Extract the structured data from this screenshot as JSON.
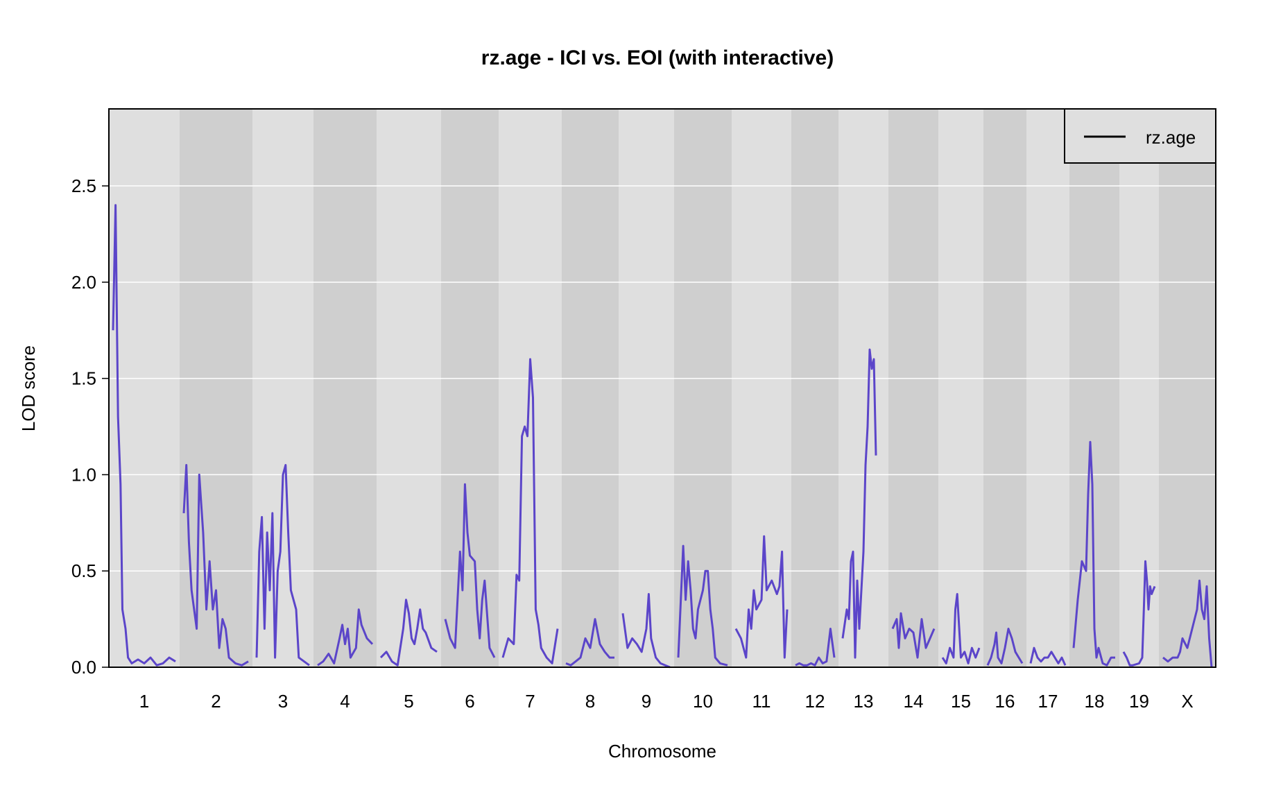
{
  "chart_data": {
    "type": "line",
    "title": "rz.age - ICI vs. EOI (with interactive)",
    "xlabel": "Chromosome",
    "ylabel": "LOD score",
    "ylim": [
      0,
      2.9
    ],
    "yticks": [
      "0.0",
      "0.5",
      "1.0",
      "1.5",
      "2.0",
      "2.5"
    ],
    "ytick_values": [
      0,
      0.5,
      1.0,
      1.5,
      2.0,
      2.5
    ],
    "grid": true,
    "legend": {
      "position": "top-right",
      "entries": [
        "rz.age"
      ]
    },
    "colors": {
      "line": "#5b45c9",
      "band_light": "#dfdfdf",
      "band_dark": "#cfcfcf",
      "grid": "#ffffff",
      "legend_line": "#000000"
    },
    "chromosomes": [
      {
        "label": "1",
        "points": [
          [
            0,
            1.75
          ],
          [
            0.04,
            2.4
          ],
          [
            0.08,
            1.3
          ],
          [
            0.12,
            0.95
          ],
          [
            0.15,
            0.3
          ],
          [
            0.2,
            0.2
          ],
          [
            0.24,
            0.05
          ],
          [
            0.3,
            0.02
          ],
          [
            0.4,
            0.04
          ],
          [
            0.5,
            0.02
          ],
          [
            0.6,
            0.05
          ],
          [
            0.7,
            0.01
          ],
          [
            0.8,
            0.02
          ],
          [
            0.9,
            0.05
          ],
          [
            1,
            0.03
          ]
        ]
      },
      {
        "label": "2",
        "points": [
          [
            0,
            0.8
          ],
          [
            0.04,
            1.05
          ],
          [
            0.08,
            0.65
          ],
          [
            0.12,
            0.4
          ],
          [
            0.2,
            0.2
          ],
          [
            0.24,
            1.0
          ],
          [
            0.3,
            0.7
          ],
          [
            0.35,
            0.3
          ],
          [
            0.4,
            0.55
          ],
          [
            0.45,
            0.3
          ],
          [
            0.5,
            0.4
          ],
          [
            0.55,
            0.1
          ],
          [
            0.6,
            0.25
          ],
          [
            0.65,
            0.2
          ],
          [
            0.7,
            0.05
          ],
          [
            0.8,
            0.02
          ],
          [
            0.9,
            0.01
          ],
          [
            1,
            0.03
          ]
        ]
      },
      {
        "label": "3",
        "points": [
          [
            0,
            0.05
          ],
          [
            0.05,
            0.6
          ],
          [
            0.1,
            0.78
          ],
          [
            0.15,
            0.2
          ],
          [
            0.2,
            0.7
          ],
          [
            0.25,
            0.4
          ],
          [
            0.3,
            0.8
          ],
          [
            0.35,
            0.05
          ],
          [
            0.4,
            0.5
          ],
          [
            0.45,
            0.6
          ],
          [
            0.5,
            1.0
          ],
          [
            0.55,
            1.05
          ],
          [
            0.6,
            0.7
          ],
          [
            0.65,
            0.4
          ],
          [
            0.7,
            0.35
          ],
          [
            0.75,
            0.3
          ],
          [
            0.8,
            0.05
          ],
          [
            1,
            0.01
          ]
        ]
      },
      {
        "label": "4",
        "points": [
          [
            0,
            0.01
          ],
          [
            0.1,
            0.03
          ],
          [
            0.2,
            0.07
          ],
          [
            0.3,
            0.02
          ],
          [
            0.4,
            0.15
          ],
          [
            0.45,
            0.22
          ],
          [
            0.5,
            0.12
          ],
          [
            0.55,
            0.2
          ],
          [
            0.6,
            0.05
          ],
          [
            0.7,
            0.1
          ],
          [
            0.75,
            0.3
          ],
          [
            0.8,
            0.22
          ],
          [
            0.9,
            0.15
          ],
          [
            1,
            0.12
          ]
        ]
      },
      {
        "label": "5",
        "points": [
          [
            0,
            0.05
          ],
          [
            0.1,
            0.08
          ],
          [
            0.2,
            0.03
          ],
          [
            0.3,
            0.01
          ],
          [
            0.4,
            0.2
          ],
          [
            0.45,
            0.35
          ],
          [
            0.5,
            0.28
          ],
          [
            0.55,
            0.15
          ],
          [
            0.6,
            0.12
          ],
          [
            0.65,
            0.2
          ],
          [
            0.7,
            0.3
          ],
          [
            0.75,
            0.2
          ],
          [
            0.8,
            0.18
          ],
          [
            0.9,
            0.1
          ],
          [
            1,
            0.08
          ]
        ]
      },
      {
        "label": "6",
        "points": [
          [
            0,
            0.25
          ],
          [
            0.1,
            0.15
          ],
          [
            0.2,
            0.1
          ],
          [
            0.3,
            0.6
          ],
          [
            0.35,
            0.4
          ],
          [
            0.4,
            0.95
          ],
          [
            0.45,
            0.7
          ],
          [
            0.5,
            0.58
          ],
          [
            0.6,
            0.55
          ],
          [
            0.65,
            0.3
          ],
          [
            0.7,
            0.15
          ],
          [
            0.75,
            0.35
          ],
          [
            0.8,
            0.45
          ],
          [
            0.9,
            0.1
          ],
          [
            1,
            0.05
          ]
        ]
      },
      {
        "label": "7",
        "points": [
          [
            0,
            0.05
          ],
          [
            0.1,
            0.15
          ],
          [
            0.2,
            0.12
          ],
          [
            0.25,
            0.48
          ],
          [
            0.3,
            0.45
          ],
          [
            0.35,
            1.2
          ],
          [
            0.4,
            1.25
          ],
          [
            0.45,
            1.2
          ],
          [
            0.5,
            1.6
          ],
          [
            0.55,
            1.4
          ],
          [
            0.6,
            0.3
          ],
          [
            0.65,
            0.22
          ],
          [
            0.7,
            0.1
          ],
          [
            0.8,
            0.05
          ],
          [
            0.9,
            0.02
          ],
          [
            1,
            0.2
          ]
        ]
      },
      {
        "label": "8",
        "points": [
          [
            0,
            0.02
          ],
          [
            0.1,
            0.01
          ],
          [
            0.2,
            0.03
          ],
          [
            0.3,
            0.05
          ],
          [
            0.4,
            0.15
          ],
          [
            0.5,
            0.1
          ],
          [
            0.6,
            0.25
          ],
          [
            0.7,
            0.12
          ],
          [
            0.8,
            0.08
          ],
          [
            0.9,
            0.05
          ],
          [
            1,
            0.05
          ]
        ]
      },
      {
        "label": "9",
        "points": [
          [
            0,
            0.28
          ],
          [
            0.1,
            0.1
          ],
          [
            0.2,
            0.15
          ],
          [
            0.3,
            0.12
          ],
          [
            0.4,
            0.08
          ],
          [
            0.5,
            0.2
          ],
          [
            0.55,
            0.38
          ],
          [
            0.6,
            0.15
          ],
          [
            0.7,
            0.05
          ],
          [
            0.8,
            0.02
          ],
          [
            0.9,
            0.01
          ],
          [
            1,
            0
          ]
        ]
      },
      {
        "label": "10",
        "points": [
          [
            0,
            0.05
          ],
          [
            0.1,
            0.63
          ],
          [
            0.15,
            0.35
          ],
          [
            0.2,
            0.55
          ],
          [
            0.25,
            0.4
          ],
          [
            0.3,
            0.2
          ],
          [
            0.35,
            0.15
          ],
          [
            0.4,
            0.3
          ],
          [
            0.5,
            0.4
          ],
          [
            0.55,
            0.5
          ],
          [
            0.6,
            0.5
          ],
          [
            0.65,
            0.3
          ],
          [
            0.7,
            0.2
          ],
          [
            0.75,
            0.05
          ],
          [
            0.85,
            0.02
          ],
          [
            1,
            0.01
          ]
        ]
      },
      {
        "label": "11",
        "points": [
          [
            0,
            0.2
          ],
          [
            0.1,
            0.15
          ],
          [
            0.2,
            0.05
          ],
          [
            0.25,
            0.3
          ],
          [
            0.3,
            0.2
          ],
          [
            0.35,
            0.4
          ],
          [
            0.4,
            0.3
          ],
          [
            0.5,
            0.35
          ],
          [
            0.55,
            0.68
          ],
          [
            0.6,
            0.4
          ],
          [
            0.7,
            0.45
          ],
          [
            0.8,
            0.38
          ],
          [
            0.85,
            0.42
          ],
          [
            0.9,
            0.6
          ],
          [
            0.95,
            0.05
          ],
          [
            1,
            0.3
          ]
        ]
      },
      {
        "label": "12",
        "points": [
          [
            0,
            0.01
          ],
          [
            0.1,
            0.02
          ],
          [
            0.2,
            0.01
          ],
          [
            0.3,
            0.01
          ],
          [
            0.4,
            0.02
          ],
          [
            0.5,
            0.01
          ],
          [
            0.6,
            0.05
          ],
          [
            0.7,
            0.02
          ],
          [
            0.8,
            0.03
          ],
          [
            0.9,
            0.2
          ],
          [
            1,
            0.05
          ]
        ]
      },
      {
        "label": "13",
        "points": [
          [
            0,
            0.15
          ],
          [
            0.1,
            0.3
          ],
          [
            0.15,
            0.25
          ],
          [
            0.2,
            0.55
          ],
          [
            0.25,
            0.6
          ],
          [
            0.3,
            0.05
          ],
          [
            0.35,
            0.45
          ],
          [
            0.4,
            0.2
          ],
          [
            0.5,
            0.6
          ],
          [
            0.55,
            1.05
          ],
          [
            0.6,
            1.25
          ],
          [
            0.65,
            1.65
          ],
          [
            0.7,
            1.55
          ],
          [
            0.75,
            1.6
          ],
          [
            0.8,
            1.1
          ]
        ]
      },
      {
        "label": "14",
        "points": [
          [
            0,
            0.2
          ],
          [
            0.1,
            0.25
          ],
          [
            0.15,
            0.1
          ],
          [
            0.2,
            0.28
          ],
          [
            0.3,
            0.15
          ],
          [
            0.4,
            0.2
          ],
          [
            0.5,
            0.18
          ],
          [
            0.6,
            0.05
          ],
          [
            0.7,
            0.25
          ],
          [
            0.8,
            0.1
          ],
          [
            0.9,
            0.15
          ],
          [
            1,
            0.2
          ]
        ]
      },
      {
        "label": "15",
        "points": [
          [
            0,
            0.05
          ],
          [
            0.1,
            0.02
          ],
          [
            0.2,
            0.1
          ],
          [
            0.3,
            0.05
          ],
          [
            0.35,
            0.3
          ],
          [
            0.4,
            0.38
          ],
          [
            0.5,
            0.05
          ],
          [
            0.6,
            0.08
          ],
          [
            0.7,
            0.02
          ],
          [
            0.8,
            0.1
          ],
          [
            0.9,
            0.05
          ],
          [
            1,
            0.1
          ]
        ]
      },
      {
        "label": "16",
        "points": [
          [
            0,
            0.01
          ],
          [
            0.1,
            0.05
          ],
          [
            0.2,
            0.12
          ],
          [
            0.25,
            0.18
          ],
          [
            0.3,
            0.05
          ],
          [
            0.4,
            0.02
          ],
          [
            0.5,
            0.1
          ],
          [
            0.6,
            0.2
          ],
          [
            0.7,
            0.15
          ],
          [
            0.8,
            0.08
          ],
          [
            0.9,
            0.05
          ],
          [
            1,
            0.02
          ]
        ]
      },
      {
        "label": "17",
        "points": [
          [
            0,
            0.02
          ],
          [
            0.1,
            0.1
          ],
          [
            0.2,
            0.05
          ],
          [
            0.3,
            0.03
          ],
          [
            0.4,
            0.05
          ],
          [
            0.5,
            0.05
          ],
          [
            0.6,
            0.08
          ],
          [
            0.7,
            0.05
          ],
          [
            0.8,
            0.02
          ],
          [
            0.9,
            0.05
          ],
          [
            1,
            0.01
          ]
        ]
      },
      {
        "label": "18",
        "points": [
          [
            0,
            0.1
          ],
          [
            0.1,
            0.35
          ],
          [
            0.15,
            0.45
          ],
          [
            0.2,
            0.55
          ],
          [
            0.3,
            0.5
          ],
          [
            0.35,
            0.9
          ],
          [
            0.4,
            1.17
          ],
          [
            0.45,
            0.95
          ],
          [
            0.5,
            0.2
          ],
          [
            0.55,
            0.05
          ],
          [
            0.6,
            0.1
          ],
          [
            0.7,
            0.02
          ],
          [
            0.8,
            0.01
          ],
          [
            0.9,
            0.05
          ],
          [
            1,
            0.05
          ]
        ]
      },
      {
        "label": "19",
        "points": [
          [
            0,
            0.08
          ],
          [
            0.1,
            0.05
          ],
          [
            0.2,
            0.01
          ],
          [
            0.3,
            0.01
          ],
          [
            0.5,
            0.02
          ],
          [
            0.6,
            0.05
          ],
          [
            0.65,
            0.3
          ],
          [
            0.7,
            0.55
          ],
          [
            0.75,
            0.45
          ],
          [
            0.8,
            0.3
          ],
          [
            0.85,
            0.42
          ],
          [
            0.9,
            0.38
          ],
          [
            1,
            0.42
          ]
        ]
      },
      {
        "label": "X",
        "points": [
          [
            0,
            0.05
          ],
          [
            0.1,
            0.03
          ],
          [
            0.2,
            0.05
          ],
          [
            0.3,
            0.05
          ],
          [
            0.35,
            0.08
          ],
          [
            0.4,
            0.15
          ],
          [
            0.5,
            0.1
          ],
          [
            0.6,
            0.2
          ],
          [
            0.7,
            0.3
          ],
          [
            0.75,
            0.45
          ],
          [
            0.8,
            0.3
          ],
          [
            0.85,
            0.25
          ],
          [
            0.9,
            0.42
          ],
          [
            0.95,
            0.15
          ],
          [
            1,
            0
          ]
        ]
      }
    ]
  }
}
